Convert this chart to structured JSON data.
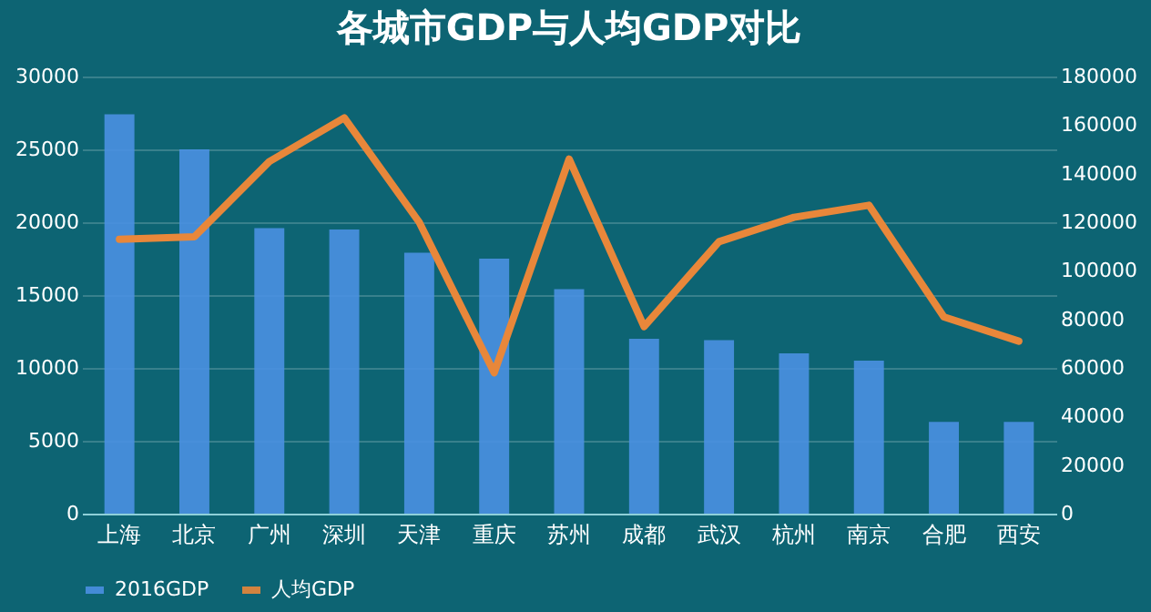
{
  "chart_data": {
    "type": "bar",
    "title": "各城市GDP与人均GDP对比",
    "categories": [
      "上海",
      "北京",
      "广州",
      "深圳",
      "天津",
      "重庆",
      "苏州",
      "成都",
      "武汉",
      "杭州",
      "南京",
      "合肥",
      "西安"
    ],
    "series": [
      {
        "name": "2016GDP",
        "color": "#4a90e2",
        "values": [
          27400,
          25000,
          19600,
          19500,
          17900,
          17500,
          15400,
          12000,
          11900,
          11000,
          10500,
          6300,
          6300
        ]
      },
      {
        "name": "人均GDP",
        "type": "line",
        "axis": "y2",
        "color": "#e8873a",
        "values": [
          113000,
          114000,
          145000,
          163000,
          120000,
          58000,
          146000,
          77000,
          112000,
          122000,
          127000,
          81000,
          71000
        ]
      }
    ],
    "ylim": [
      0,
      30000
    ],
    "yticks": [
      0,
      5000,
      10000,
      15000,
      20000,
      25000,
      30000
    ],
    "y2lim": [
      0,
      180000
    ],
    "y2ticks": [
      0,
      20000,
      40000,
      60000,
      80000,
      100000,
      120000,
      140000,
      160000,
      180000
    ],
    "grid": "y",
    "legend": "bottom",
    "marker": "none",
    "line_style": "solid"
  }
}
